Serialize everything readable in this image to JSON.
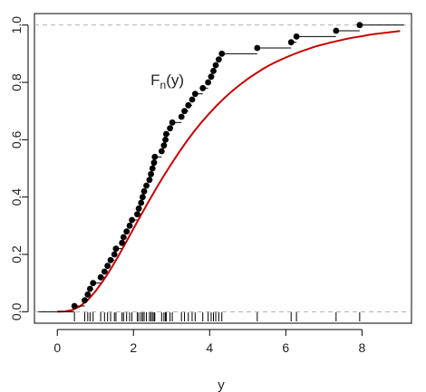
{
  "chart_data": {
    "type": "line",
    "title": "",
    "xlabel": "y",
    "ylabel": "",
    "xlim": [
      -0.6,
      9.3
    ],
    "ylim": [
      -0.04,
      1.04
    ],
    "x_ticks": [
      0,
      2,
      4,
      6,
      8
    ],
    "y_ticks": [
      0.0,
      0.2,
      0.4,
      0.6,
      0.8,
      1.0
    ],
    "reference_lines_y": [
      0,
      1
    ],
    "annotation": {
      "text": "F",
      "subscript": "n",
      "suffix": "(y)",
      "x": 2.45,
      "y": 0.79
    },
    "colors": {
      "ecdf": "#000000",
      "cdf": "#cc0000",
      "reference": "#b0b0b0"
    },
    "series": [
      {
        "kind": "ecdf-step",
        "points": [
          [
            0.45,
            0.02
          ],
          [
            0.72,
            0.04
          ],
          [
            0.8,
            0.06
          ],
          [
            0.86,
            0.08
          ],
          [
            0.94,
            0.1
          ],
          [
            1.14,
            0.12
          ],
          [
            1.24,
            0.14
          ],
          [
            1.32,
            0.16
          ],
          [
            1.4,
            0.18
          ],
          [
            1.5,
            0.2
          ],
          [
            1.54,
            0.22
          ],
          [
            1.7,
            0.24
          ],
          [
            1.74,
            0.26
          ],
          [
            1.82,
            0.28
          ],
          [
            1.9,
            0.3
          ],
          [
            1.96,
            0.32
          ],
          [
            2.1,
            0.34
          ],
          [
            2.14,
            0.36
          ],
          [
            2.2,
            0.38
          ],
          [
            2.24,
            0.4
          ],
          [
            2.28,
            0.42
          ],
          [
            2.34,
            0.44
          ],
          [
            2.42,
            0.46
          ],
          [
            2.46,
            0.48
          ],
          [
            2.5,
            0.5
          ],
          [
            2.54,
            0.52
          ],
          [
            2.56,
            0.54
          ],
          [
            2.74,
            0.56
          ],
          [
            2.8,
            0.58
          ],
          [
            2.84,
            0.6
          ],
          [
            2.86,
            0.62
          ],
          [
            2.96,
            0.64
          ],
          [
            3.02,
            0.66
          ],
          [
            3.26,
            0.68
          ],
          [
            3.34,
            0.7
          ],
          [
            3.44,
            0.72
          ],
          [
            3.54,
            0.74
          ],
          [
            3.62,
            0.76
          ],
          [
            3.82,
            0.78
          ],
          [
            3.96,
            0.8
          ],
          [
            4.04,
            0.82
          ],
          [
            4.1,
            0.84
          ],
          [
            4.16,
            0.86
          ],
          [
            4.24,
            0.88
          ],
          [
            4.32,
            0.9
          ],
          [
            5.25,
            0.92
          ],
          [
            6.14,
            0.94
          ],
          [
            6.28,
            0.96
          ],
          [
            7.32,
            0.98
          ],
          [
            7.94,
            1.0
          ]
        ],
        "from_x": -0.5,
        "to_x": 9.1
      },
      {
        "kind": "cdf-line",
        "x": [
          0,
          0.2,
          0.4,
          0.6,
          0.8,
          1.0,
          1.2,
          1.4,
          1.6,
          1.8,
          2.0,
          2.2,
          2.4,
          2.6,
          2.8,
          3.0,
          3.2,
          3.4,
          3.6,
          3.8,
          4.0,
          4.2,
          4.4,
          4.6,
          4.8,
          5.0,
          5.2,
          5.4,
          5.6,
          5.8,
          6.0,
          6.2,
          6.4,
          6.6,
          6.8,
          7.0,
          7.2,
          7.4,
          7.6,
          7.8,
          8.0,
          8.2,
          8.4,
          8.6,
          8.8,
          9.0
        ],
        "y": [
          0,
          0.001,
          0.006,
          0.019,
          0.041,
          0.071,
          0.107,
          0.148,
          0.193,
          0.241,
          0.29,
          0.338,
          0.385,
          0.431,
          0.475,
          0.517,
          0.557,
          0.595,
          0.63,
          0.663,
          0.693,
          0.721,
          0.747,
          0.771,
          0.792,
          0.812,
          0.83,
          0.847,
          0.862,
          0.875,
          0.887,
          0.898,
          0.908,
          0.917,
          0.926,
          0.933,
          0.94,
          0.946,
          0.952,
          0.957,
          0.961,
          0.966,
          0.97,
          0.973,
          0.976,
          0.979
        ]
      }
    ],
    "rug": [
      0.45,
      0.72,
      0.8,
      0.86,
      0.94,
      1.14,
      1.24,
      1.32,
      1.4,
      1.5,
      1.54,
      1.7,
      1.74,
      1.82,
      1.9,
      1.96,
      2.1,
      2.14,
      2.2,
      2.24,
      2.28,
      2.34,
      2.42,
      2.46,
      2.5,
      2.54,
      2.56,
      2.74,
      2.8,
      2.84,
      2.86,
      2.96,
      3.02,
      3.26,
      3.34,
      3.44,
      3.54,
      3.62,
      3.82,
      3.96,
      4.04,
      4.1,
      4.16,
      4.24,
      4.32,
      5.25,
      6.14,
      6.28,
      7.32,
      7.94
    ]
  }
}
